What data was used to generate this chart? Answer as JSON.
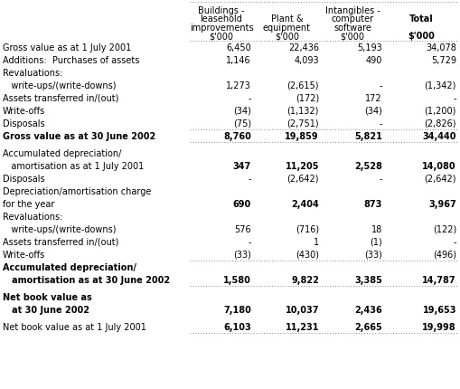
{
  "rows": [
    {
      "label": "Gross value as at 1 July 2001",
      "values": [
        "6,450",
        "22,436",
        "5,193",
        "34,078"
      ],
      "bold": false,
      "bold_vals": false,
      "multiline": false,
      "spacer": false,
      "border_top": false,
      "border_bottom": false
    },
    {
      "label": "Additions:  Purchases of assets",
      "values": [
        "1,146",
        "4,093",
        "490",
        "5,729"
      ],
      "bold": false,
      "bold_vals": false,
      "multiline": false,
      "spacer": false,
      "border_top": false,
      "border_bottom": false
    },
    {
      "label": "Revaluations:",
      "values": [
        "",
        "",
        "",
        ""
      ],
      "bold": false,
      "bold_vals": false,
      "multiline": false,
      "spacer": false,
      "border_top": false,
      "border_bottom": false
    },
    {
      "label": "   write-ups/(write-downs)",
      "values": [
        "1,273",
        "(2,615)",
        "-",
        "(1,342)"
      ],
      "bold": false,
      "bold_vals": false,
      "multiline": false,
      "spacer": false,
      "border_top": false,
      "border_bottom": false
    },
    {
      "label": "Assets transferred in/(out)",
      "values": [
        "-",
        "(172)",
        "172",
        "-"
      ],
      "bold": false,
      "bold_vals": false,
      "multiline": false,
      "spacer": false,
      "border_top": false,
      "border_bottom": false
    },
    {
      "label": "Write-offs",
      "values": [
        "(34)",
        "(1,132)",
        "(34)",
        "(1,200)"
      ],
      "bold": false,
      "bold_vals": false,
      "multiline": false,
      "spacer": false,
      "border_top": false,
      "border_bottom": false
    },
    {
      "label": "Disposals",
      "values": [
        "(75)",
        "(2,751)",
        "-",
        "(2,826)"
      ],
      "bold": false,
      "bold_vals": false,
      "multiline": false,
      "spacer": false,
      "border_top": false,
      "border_bottom": false
    },
    {
      "label": "Gross value as at 30 June 2002",
      "values": [
        "8,760",
        "19,859",
        "5,821",
        "34,440"
      ],
      "bold": true,
      "bold_vals": true,
      "multiline": false,
      "spacer": false,
      "border_top": true,
      "border_bottom": true
    },
    {
      "label": "",
      "values": [
        "",
        "",
        "",
        ""
      ],
      "bold": false,
      "bold_vals": false,
      "multiline": false,
      "spacer": true,
      "border_top": false,
      "border_bottom": false
    },
    {
      "label": "Accumulated depreciation/",
      "values": [
        "",
        "",
        "",
        ""
      ],
      "bold": false,
      "bold_vals": false,
      "multiline": false,
      "spacer": false,
      "border_top": false,
      "border_bottom": false
    },
    {
      "label": "   amortisation as at 1 July 2001",
      "values": [
        "347",
        "11,205",
        "2,528",
        "14,080"
      ],
      "bold": false,
      "bold_vals": true,
      "multiline": false,
      "spacer": false,
      "border_top": false,
      "border_bottom": false
    },
    {
      "label": "Disposals",
      "values": [
        "-",
        "(2,642)",
        "-",
        "(2,642)"
      ],
      "bold": false,
      "bold_vals": false,
      "multiline": false,
      "spacer": false,
      "border_top": false,
      "border_bottom": false
    },
    {
      "label": "Depreciation/amortisation charge",
      "values": [
        "",
        "",
        "",
        ""
      ],
      "bold": false,
      "bold_vals": false,
      "multiline": false,
      "spacer": false,
      "border_top": false,
      "border_bottom": false
    },
    {
      "label": "for the year",
      "values": [
        "690",
        "2,404",
        "873",
        "3,967"
      ],
      "bold": false,
      "bold_vals": true,
      "multiline": false,
      "spacer": false,
      "border_top": false,
      "border_bottom": false
    },
    {
      "label": "Revaluations:",
      "values": [
        "",
        "",
        "",
        ""
      ],
      "bold": false,
      "bold_vals": false,
      "multiline": false,
      "spacer": false,
      "border_top": false,
      "border_bottom": false
    },
    {
      "label": "   write-ups/(write-downs)",
      "values": [
        "576",
        "(716)",
        "18",
        "(122)"
      ],
      "bold": false,
      "bold_vals": false,
      "multiline": false,
      "spacer": false,
      "border_top": false,
      "border_bottom": false
    },
    {
      "label": "Assets transferred in/(out)",
      "values": [
        "-",
        "1",
        "(1)",
        "-"
      ],
      "bold": false,
      "bold_vals": false,
      "multiline": false,
      "spacer": false,
      "border_top": false,
      "border_bottom": false
    },
    {
      "label": "Write-offs",
      "values": [
        "(33)",
        "(430)",
        "(33)",
        "(496)"
      ],
      "bold": false,
      "bold_vals": false,
      "multiline": false,
      "spacer": false,
      "border_top": false,
      "border_bottom": false
    },
    {
      "label": "Accumulated depreciation/",
      "values": [
        "",
        "",
        "",
        ""
      ],
      "bold": true,
      "bold_vals": false,
      "multiline": false,
      "spacer": false,
      "border_top": true,
      "border_bottom": false
    },
    {
      "label": "   amortisation as at 30 June 2002",
      "values": [
        "1,580",
        "9,822",
        "3,385",
        "14,787"
      ],
      "bold": true,
      "bold_vals": true,
      "multiline": false,
      "spacer": false,
      "border_top": false,
      "border_bottom": true
    },
    {
      "label": "",
      "values": [
        "",
        "",
        "",
        ""
      ],
      "bold": false,
      "bold_vals": false,
      "multiline": false,
      "spacer": true,
      "border_top": false,
      "border_bottom": false
    },
    {
      "label": "Net book value as",
      "values": [
        "",
        "",
        "",
        ""
      ],
      "bold": true,
      "bold_vals": false,
      "multiline": false,
      "spacer": false,
      "border_top": false,
      "border_bottom": false
    },
    {
      "label": "   at 30 June 2002",
      "values": [
        "7,180",
        "10,037",
        "2,436",
        "19,653"
      ],
      "bold": true,
      "bold_vals": true,
      "multiline": false,
      "spacer": false,
      "border_top": false,
      "border_bottom": false
    },
    {
      "label": "",
      "values": [
        "",
        "",
        "",
        ""
      ],
      "bold": false,
      "bold_vals": false,
      "multiline": false,
      "spacer": true,
      "border_top": false,
      "border_bottom": false
    },
    {
      "label": "Net book value as at 1 July 2001",
      "values": [
        "6,103",
        "11,231",
        "2,665",
        "19,998"
      ],
      "bold": false,
      "bold_vals": true,
      "multiline": false,
      "spacer": false,
      "border_top": false,
      "border_bottom": true
    }
  ],
  "bg_color": "#ffffff",
  "text_color": "#000000",
  "font_size": 7.0,
  "header_font_size": 7.0
}
